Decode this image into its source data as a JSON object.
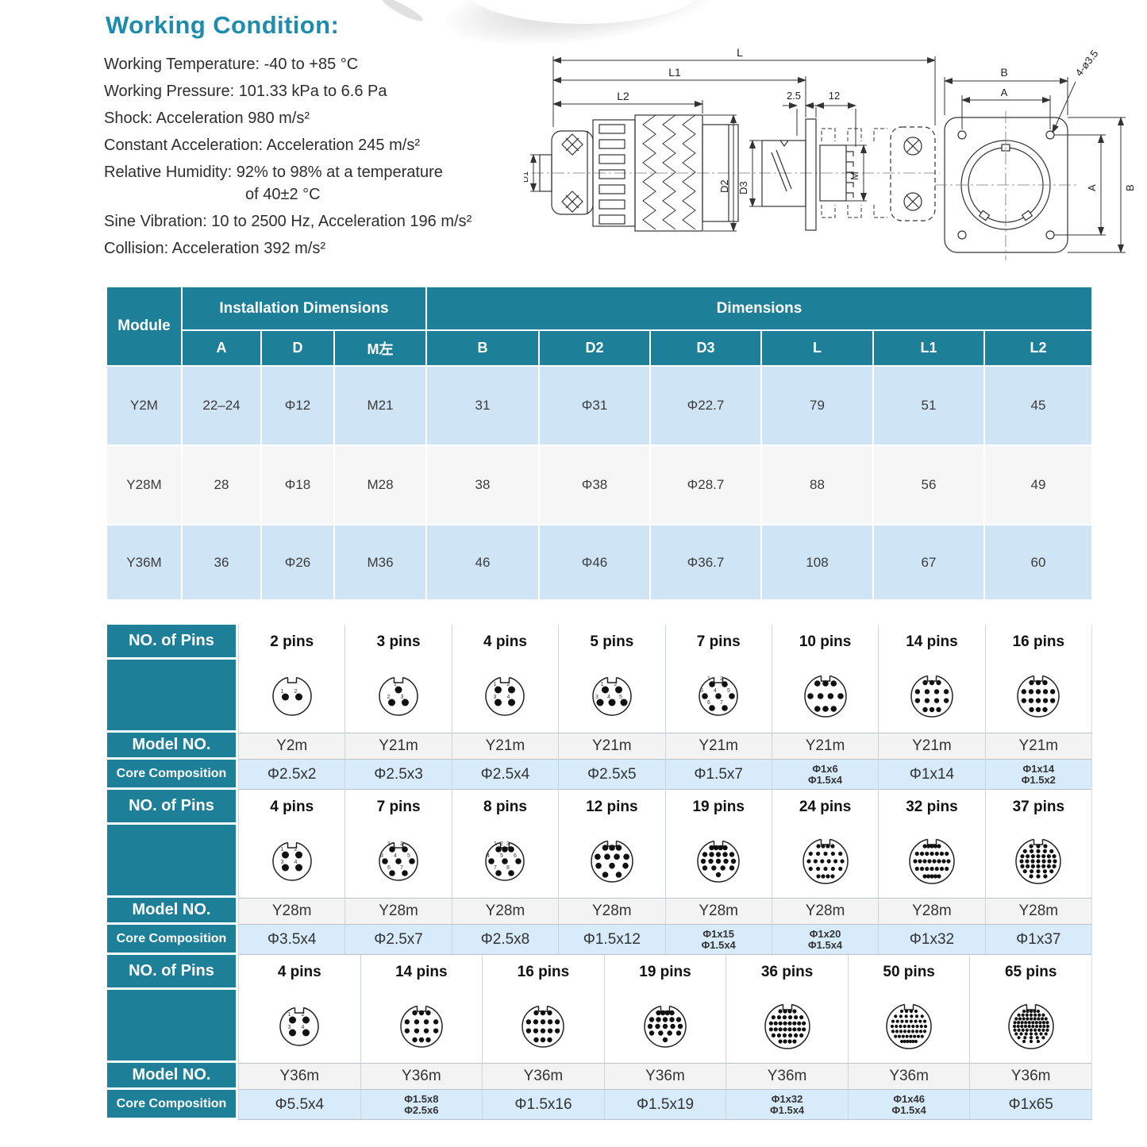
{
  "title": "Working Condition:",
  "working_conditions": [
    {
      "text": "Working Temperature: -40 to +85 °C",
      "indent": false
    },
    {
      "text": "Working Pressure: 101.33 kPa to 6.6 Pa",
      "indent": false
    },
    {
      "text": "Shock: Acceleration 980 m/s²",
      "indent": false
    },
    {
      "text": "Constant Acceleration: Acceleration 245 m/s²",
      "indent": false
    },
    {
      "text": "Relative Humidity: 92% to 98% at a temperature",
      "indent": false
    },
    {
      "text": "of 40±2 °C",
      "indent": true
    },
    {
      "text": "Sine Vibration: 10 to 2500 Hz, Acceleration 196 m/s²",
      "indent": false
    },
    {
      "text": "Collision: Acceleration 392 m/s²",
      "indent": false
    }
  ],
  "drawing": {
    "dim_L": "L",
    "dim_L1": "L1",
    "dim_L2": "L2",
    "dim_2_5": "2.5",
    "dim_12": "12",
    "dim_D1": "D1",
    "dim_D2": "D2",
    "dim_D3": "D3",
    "dim_M": "M",
    "dim_B_top": "B",
    "dim_A_top": "A",
    "dim_A_right": "A",
    "dim_B_right": "B",
    "hole_label": "4-ø3.5"
  },
  "dimensions_table": {
    "module_header": "Module",
    "group_headers": [
      "Installation Dimensions",
      "Dimensions"
    ],
    "col_headers": [
      "A",
      "D",
      "M左",
      "B",
      "D2",
      "D3",
      "L",
      "L1",
      "L2"
    ],
    "rows": [
      {
        "module": "Y2M",
        "values": [
          "22–24",
          "Φ12",
          "M21",
          "31",
          "Φ31",
          "Φ22.7",
          "79",
          "51",
          "45"
        ]
      },
      {
        "module": "Y28M",
        "values": [
          "28",
          "Φ18",
          "M28",
          "38",
          "Φ38",
          "Φ28.7",
          "88",
          "56",
          "49"
        ]
      },
      {
        "module": "Y36M",
        "values": [
          "36",
          "Φ26",
          "M36",
          "46",
          "Φ46",
          "Φ36.7",
          "108",
          "67",
          "60"
        ]
      }
    ]
  },
  "pin_row_labels": {
    "pins": "NO. of Pins",
    "model": "Model NO.",
    "core": "Core Composition"
  },
  "pin_tables": [
    {
      "columns": [
        {
          "pins": 2,
          "label": "2 pins",
          "model": "Y2m",
          "core": [
            "Φ2.5x2"
          ]
        },
        {
          "pins": 3,
          "label": "3 pins",
          "model": "Y21m",
          "core": [
            "Φ2.5x3"
          ]
        },
        {
          "pins": 4,
          "label": "4 pins",
          "model": "Y21m",
          "core": [
            "Φ2.5x4"
          ]
        },
        {
          "pins": 5,
          "label": "5 pins",
          "model": "Y21m",
          "core": [
            "Φ2.5x5"
          ]
        },
        {
          "pins": 7,
          "label": "7 pins",
          "model": "Y21m",
          "core": [
            "Φ1.5x7"
          ]
        },
        {
          "pins": 10,
          "label": "10 pins",
          "model": "Y21m",
          "core": [
            "Φ1x6",
            "Φ1.5x4"
          ]
        },
        {
          "pins": 14,
          "label": "14 pins",
          "model": "Y21m",
          "core": [
            "Φ1x14"
          ]
        },
        {
          "pins": 16,
          "label": "16 pins",
          "model": "Y21m",
          "core": [
            "Φ1x14",
            "Φ1.5x2"
          ]
        }
      ]
    },
    {
      "columns": [
        {
          "pins": 4,
          "label": "4 pins",
          "model": "Y28m",
          "core": [
            "Φ3.5x4"
          ]
        },
        {
          "pins": 7,
          "label": "7 pins",
          "model": "Y28m",
          "core": [
            "Φ2.5x7"
          ]
        },
        {
          "pins": 8,
          "label": "8 pins",
          "model": "Y28m",
          "core": [
            "Φ2.5x8"
          ]
        },
        {
          "pins": 12,
          "label": "12 pins",
          "model": "Y28m",
          "core": [
            "Φ1.5x12"
          ]
        },
        {
          "pins": 19,
          "label": "19 pins",
          "model": "Y28m",
          "core": [
            "Φ1x15",
            "Φ1.5x4"
          ]
        },
        {
          "pins": 24,
          "label": "24 pins",
          "model": "Y28m",
          "core": [
            "Φ1x20",
            "Φ1.5x4"
          ]
        },
        {
          "pins": 32,
          "label": "32 pins",
          "model": "Y28m",
          "core": [
            "Φ1x32"
          ]
        },
        {
          "pins": 37,
          "label": "37 pins",
          "model": "Y28m",
          "core": [
            "Φ1x37"
          ]
        }
      ]
    },
    {
      "columns": [
        {
          "pins": 4,
          "label": "4 pins",
          "model": "Y36m",
          "core": [
            "Φ5.5x4"
          ]
        },
        {
          "pins": 14,
          "label": "14 pins",
          "model": "Y36m",
          "core": [
            "Φ1.5x8",
            "Φ2.5x6"
          ]
        },
        {
          "pins": 16,
          "label": "16 pins",
          "model": "Y36m",
          "core": [
            "Φ1.5x16"
          ]
        },
        {
          "pins": 19,
          "label": "19 pins",
          "model": "Y36m",
          "core": [
            "Φ1.5x19"
          ]
        },
        {
          "pins": 36,
          "label": "36 pins",
          "model": "Y36m",
          "core": [
            "Φ1x32",
            "Φ1.5x4"
          ]
        },
        {
          "pins": 50,
          "label": "50 pins",
          "model": "Y36m",
          "core": [
            "Φ1x46",
            "Φ1.5x4"
          ]
        },
        {
          "pins": 65,
          "label": "65 pins",
          "model": "Y36m",
          "core": [
            "Φ1x65"
          ]
        }
      ]
    }
  ],
  "colors": {
    "teal": "#1e7f99",
    "heading": "#1d8cad",
    "row_blue": "#cfe5f6",
    "row_gray": "#f6f6f6",
    "core_blue": "#d7ebfa"
  }
}
